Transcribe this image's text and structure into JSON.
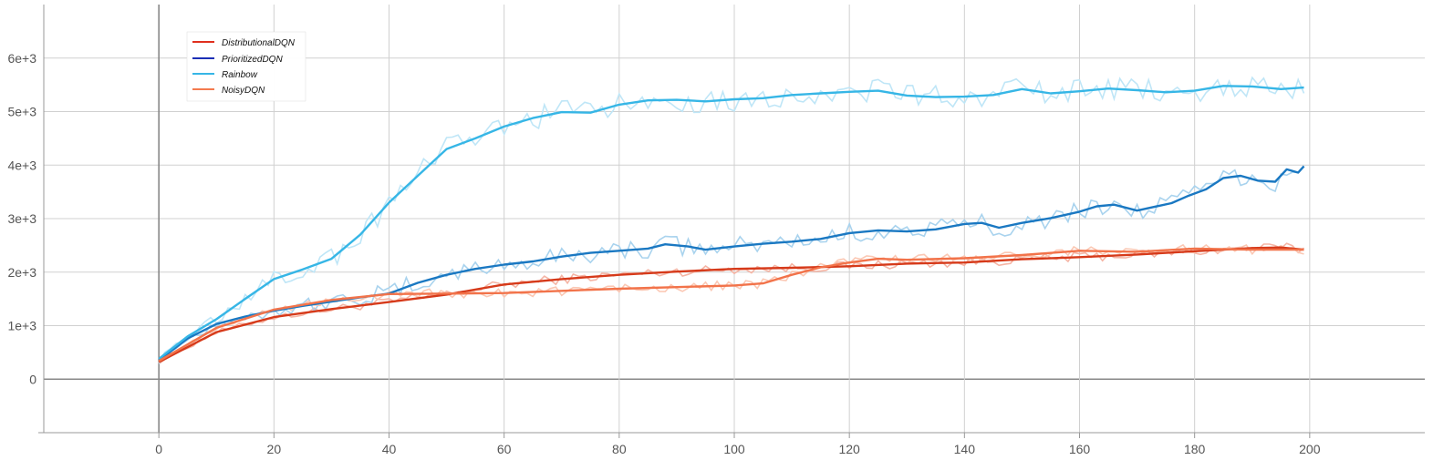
{
  "chart_data": {
    "type": "line",
    "title": "",
    "xlabel": "",
    "ylabel": "",
    "xlim": [
      -20,
      220
    ],
    "ylim": [
      -1000,
      7000
    ],
    "x_ticks": [
      0,
      20,
      40,
      60,
      80,
      100,
      120,
      140,
      160,
      180,
      200
    ],
    "x_tick_labels": [
      "0",
      "20",
      "40",
      "60",
      "80",
      "100",
      "120",
      "140",
      "160",
      "180",
      "200"
    ],
    "y_ticks": [
      0,
      1000,
      2000,
      3000,
      4000,
      5000,
      6000
    ],
    "y_tick_labels": [
      "0",
      "1e+3",
      "2e+3",
      "3e+3",
      "4e+3",
      "5e+3",
      "6e+3"
    ],
    "grid": true,
    "legend_position": "top-left",
    "legend": [
      "DistributionalDQN",
      "PrioritizedDQN",
      "Rainbow",
      "NoisyDQN"
    ],
    "legend_colors": [
      "#e0301e",
      "#1b2fb5",
      "#36b6e6",
      "#f47a4e"
    ],
    "series": [
      {
        "name": "DistributionalDQN",
        "color": "#d63a1a",
        "raw_color": "#f5b5a5",
        "x": [
          0,
          10,
          20,
          30,
          40,
          50,
          60,
          70,
          80,
          90,
          100,
          110,
          120,
          130,
          140,
          150,
          160,
          170,
          180,
          190,
          195,
          199
        ],
        "y": [
          320,
          880,
          1160,
          1310,
          1440,
          1580,
          1770,
          1870,
          1950,
          2010,
          2060,
          2080,
          2110,
          2160,
          2180,
          2240,
          2280,
          2330,
          2390,
          2450,
          2460,
          2420
        ]
      },
      {
        "name": "PrioritizedDQN",
        "color": "#1a78c2",
        "raw_color": "#a9d3ee",
        "x": [
          0,
          5,
          10,
          15,
          20,
          25,
          30,
          35,
          40,
          45,
          50,
          55,
          60,
          65,
          70,
          75,
          80,
          85,
          88,
          92,
          95,
          100,
          105,
          110,
          115,
          120,
          125,
          130,
          135,
          140,
          143,
          146,
          150,
          155,
          160,
          163,
          166,
          170,
          173,
          176,
          179,
          182,
          185,
          188,
          191,
          194,
          196,
          198,
          199
        ],
        "y": [
          350,
          760,
          1030,
          1170,
          1280,
          1370,
          1450,
          1530,
          1600,
          1800,
          1950,
          2060,
          2140,
          2200,
          2290,
          2360,
          2400,
          2440,
          2520,
          2480,
          2420,
          2480,
          2530,
          2570,
          2620,
          2730,
          2780,
          2760,
          2800,
          2900,
          2920,
          2830,
          2920,
          3010,
          3130,
          3230,
          3260,
          3150,
          3220,
          3290,
          3430,
          3550,
          3760,
          3800,
          3710,
          3690,
          3920,
          3860,
          3980
        ]
      },
      {
        "name": "Rainbow",
        "color": "#36b6e6",
        "raw_color": "#bfe6f7",
        "x": [
          0,
          5,
          10,
          15,
          20,
          25,
          30,
          35,
          40,
          45,
          50,
          55,
          60,
          65,
          70,
          75,
          80,
          85,
          90,
          95,
          100,
          105,
          110,
          115,
          120,
          125,
          130,
          135,
          140,
          145,
          150,
          155,
          160,
          165,
          170,
          175,
          180,
          185,
          190,
          195,
          199
        ],
        "y": [
          380,
          800,
          1120,
          1500,
          1870,
          2050,
          2250,
          2700,
          3300,
          3800,
          4300,
          4500,
          4720,
          4880,
          4990,
          4980,
          5130,
          5210,
          5220,
          5190,
          5230,
          5250,
          5310,
          5340,
          5370,
          5390,
          5300,
          5270,
          5280,
          5310,
          5420,
          5340,
          5380,
          5430,
          5400,
          5360,
          5390,
          5480,
          5470,
          5420,
          5450
        ]
      },
      {
        "name": "NoisyDQN",
        "color": "#f2734a",
        "raw_color": "#fbc8b4",
        "x": [
          0,
          10,
          20,
          30,
          40,
          50,
          60,
          70,
          80,
          90,
          100,
          105,
          110,
          115,
          120,
          125,
          130,
          140,
          150,
          160,
          170,
          180,
          190,
          199
        ],
        "y": [
          340,
          960,
          1300,
          1480,
          1590,
          1600,
          1610,
          1650,
          1690,
          1720,
          1750,
          1790,
          1950,
          2090,
          2180,
          2250,
          2230,
          2260,
          2320,
          2400,
          2380,
          2440,
          2420,
          2420
        ]
      }
    ]
  }
}
